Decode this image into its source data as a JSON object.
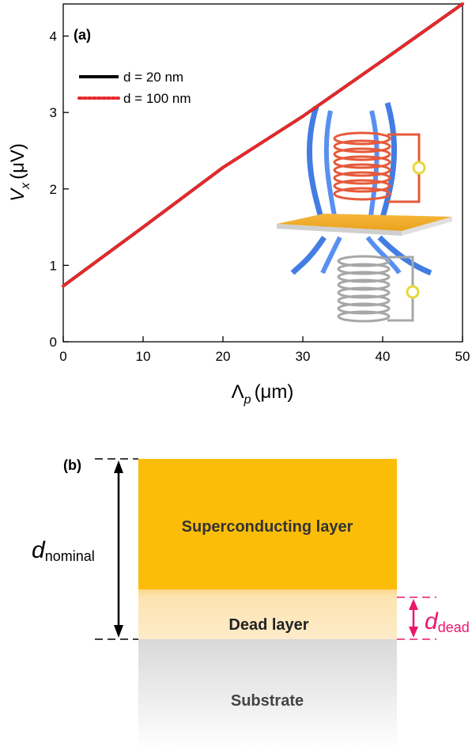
{
  "chart_data": {
    "type": "line",
    "panel_label": "(a)",
    "x_label": {
      "main": "Λ",
      "sub": "p",
      "unit": "(μm)"
    },
    "y_label": {
      "main": "V",
      "sub": "x",
      "unit": "(μV)"
    },
    "x": [
      0,
      10,
      20,
      30,
      40,
      50
    ],
    "series": [
      {
        "name": "d = 20 nm",
        "color": "#000000",
        "style": "solid",
        "values": [
          0.73,
          1.5,
          2.28,
          2.95,
          3.68,
          4.42
        ]
      },
      {
        "name": "d = 100 nm",
        "color": "#e8282b",
        "style": "dotted",
        "values": [
          0.73,
          1.5,
          2.28,
          2.95,
          3.68,
          4.42
        ]
      }
    ],
    "xlim": [
      0,
      50
    ],
    "xticks": [
      0,
      10,
      20,
      30,
      40,
      50
    ],
    "ylim": [
      0,
      4.42
    ],
    "yticks": [
      0,
      1,
      2,
      3,
      4
    ],
    "grid": false
  },
  "diagram": {
    "panel_label": "(b)",
    "nominal": {
      "symbol": "d",
      "sub": "nominal"
    },
    "dead": {
      "symbol": "d",
      "sub": "dead"
    },
    "layers": [
      "Superconducting layer",
      "Dead layer",
      "Substrate"
    ]
  }
}
